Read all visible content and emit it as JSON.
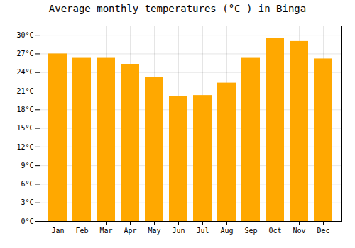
{
  "chart_data": {
    "type": "bar",
    "title": "Average monthly temperatures (°C ) in Binga",
    "categories": [
      "Jan",
      "Feb",
      "Mar",
      "Apr",
      "May",
      "Jun",
      "Jul",
      "Aug",
      "Sep",
      "Oct",
      "Nov",
      "Dec"
    ],
    "values": [
      27.0,
      26.3,
      26.3,
      25.3,
      23.2,
      20.2,
      20.3,
      22.3,
      26.3,
      29.5,
      29.0,
      26.2
    ],
    "color": "#FFA800",
    "ylim": [
      0,
      31.5
    ],
    "yticks": [
      {
        "value": 0,
        "label": "0°C"
      },
      {
        "value": 3,
        "label": "3°C"
      },
      {
        "value": 6,
        "label": "6°C"
      },
      {
        "value": 9,
        "label": "9°C"
      },
      {
        "value": 12,
        "label": "12°C"
      },
      {
        "value": 15,
        "label": "15°C"
      },
      {
        "value": 18,
        "label": "18°C"
      },
      {
        "value": 21,
        "label": "21°C"
      },
      {
        "value": 24,
        "label": "24°C"
      },
      {
        "value": 27,
        "label": "27°C"
      },
      {
        "value": 30,
        "label": "30°C"
      }
    ],
    "grid": true
  }
}
